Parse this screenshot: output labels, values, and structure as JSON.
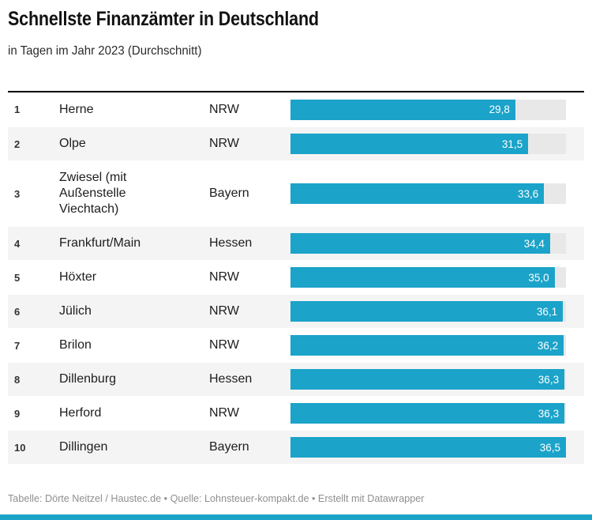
{
  "header": {
    "title": "Schnellste Finanzämter in Deutschland",
    "subtitle": "in Tagen im Jahr 2023 (Durchschnitt)"
  },
  "chart_data": {
    "type": "bar",
    "orientation": "horizontal",
    "title": "Schnellste Finanzämter in Deutschland",
    "subtitle": "in Tagen im Jahr 2023 (Durchschnitt)",
    "unit": "Tage",
    "xlim": [
      0,
      36.5
    ],
    "grid": false,
    "legend": "none",
    "categories": [
      "Herne",
      "Olpe",
      "Zwiesel (mit Außenstelle Viechtach)",
      "Frankfurt/Main",
      "Höxter",
      "Jülich",
      "Brilon",
      "Dillenburg",
      "Herford",
      "Dillingen"
    ],
    "values": [
      29.8,
      31.5,
      33.6,
      34.4,
      35.0,
      36.1,
      36.2,
      36.3,
      36.3,
      36.5
    ],
    "rows": [
      {
        "rank": "1",
        "name": "Herne",
        "state": "NRW",
        "value": 29.8,
        "label": "29,8"
      },
      {
        "rank": "2",
        "name": "Olpe",
        "state": "NRW",
        "value": 31.5,
        "label": "31,5"
      },
      {
        "rank": "3",
        "name": "Zwiesel (mit Außenstelle Viechtach)",
        "state": "Bayern",
        "value": 33.6,
        "label": "33,6"
      },
      {
        "rank": "4",
        "name": "Frankfurt/Main",
        "state": "Hessen",
        "value": 34.4,
        "label": "34,4"
      },
      {
        "rank": "5",
        "name": "Höxter",
        "state": "NRW",
        "value": 35.0,
        "label": "35,0"
      },
      {
        "rank": "6",
        "name": "Jülich",
        "state": "NRW",
        "value": 36.1,
        "label": "36,1"
      },
      {
        "rank": "7",
        "name": "Brilon",
        "state": "NRW",
        "value": 36.2,
        "label": "36,2"
      },
      {
        "rank": "8",
        "name": "Dillenburg",
        "state": "Hessen",
        "value": 36.3,
        "label": "36,3"
      },
      {
        "rank": "9",
        "name": "Herford",
        "state": "NRW",
        "value": 36.3,
        "label": "36,3"
      },
      {
        "rank": "10",
        "name": "Dillingen",
        "state": "Bayern",
        "value": 36.5,
        "label": "36,5"
      }
    ]
  },
  "footer": {
    "credit": "Tabelle: Dörte Neitzel / Haustec.de • Quelle: Lohnsteuer-kompakt.de • Erstellt mit Datawrapper"
  },
  "colors": {
    "bar": "#1ba3c9",
    "track": "#e8e8e8",
    "row_alt": "#f4f4f4",
    "accent_strip": "#1ba3c9",
    "title_text": "#121212",
    "footer_text": "#8f8f8f"
  }
}
